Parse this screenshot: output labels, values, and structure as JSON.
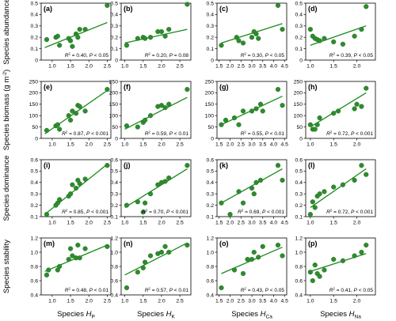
{
  "colors": {
    "point": "#2e8b2e",
    "point_stroke": "#1f6b1f",
    "line": "#1a8a1a",
    "axis": "#000000"
  },
  "chart_data": [
    {
      "type": "scatter",
      "panel": "(a)",
      "xlim": [
        0.7,
        2.6
      ],
      "ylim": [
        0,
        0.5
      ],
      "xticks": [
        1.0,
        1.5,
        2.0,
        2.5
      ],
      "yticks": [
        0,
        0.1,
        0.2,
        0.3,
        0.4,
        0.5
      ],
      "x": [
        0.85,
        1.1,
        1.15,
        1.2,
        1.45,
        1.5,
        1.55,
        1.65,
        1.7,
        1.75,
        1.9,
        2.5
      ],
      "y": [
        0.18,
        0.2,
        0.21,
        0.13,
        0.19,
        0.17,
        0.12,
        0.23,
        0.2,
        0.27,
        0.27,
        0.48
      ],
      "fit": [
        [
          0.8,
          0.11
        ],
        [
          2.5,
          0.33
        ]
      ],
      "stats": {
        "r2": "0.40",
        "p": "P < 0.05"
      }
    },
    {
      "type": "scatter",
      "panel": "(b)",
      "xlim": [
        0.9,
        2.8
      ],
      "ylim": [
        0,
        0.5
      ],
      "xticks": [
        1.0,
        1.5,
        2.0,
        2.5
      ],
      "yticks": [
        0,
        0.1,
        0.2,
        0.3,
        0.4,
        0.5
      ],
      "x": [
        1.05,
        1.35,
        1.5,
        1.55,
        1.7,
        1.9,
        2.0,
        2.1,
        2.2,
        2.7
      ],
      "y": [
        0.13,
        0.19,
        0.2,
        0.19,
        0.2,
        0.25,
        0.25,
        0.21,
        0.27,
        0.49
      ],
      "fit": [
        [
          1.0,
          0.15
        ],
        [
          2.7,
          0.27
        ]
      ],
      "stats": {
        "r2": "0.20",
        "p": "P = 0.08"
      }
    },
    {
      "type": "scatter",
      "panel": "(c)",
      "xlim": [
        1.4,
        4.6
      ],
      "ylim": [
        0,
        0.5
      ],
      "xticks": [
        1.5,
        2.0,
        2.5,
        3.0,
        3.5,
        4.0,
        4.5
      ],
      "yticks": [
        0,
        0.1,
        0.2,
        0.3,
        0.4,
        0.5
      ],
      "x": [
        1.6,
        2.3,
        2.4,
        2.6,
        3.0,
        3.1,
        3.2,
        3.3,
        4.2,
        4.4
      ],
      "y": [
        0.13,
        0.2,
        0.17,
        0.15,
        0.2,
        0.25,
        0.23,
        0.19,
        0.48,
        0.27
      ],
      "fit": [
        [
          1.6,
          0.15
        ],
        [
          4.4,
          0.32
        ]
      ],
      "stats": {
        "r2": "0.30",
        "p": "P < 0.05"
      }
    },
    {
      "type": "scatter",
      "panel": "(d)",
      "xlim": [
        0.9,
        2.4
      ],
      "ylim": [
        0,
        0.5
      ],
      "xticks": [
        1.0,
        1.5,
        2.0
      ],
      "yticks": [
        0,
        0.1,
        0.2,
        0.3,
        0.4,
        0.5
      ],
      "x": [
        1.0,
        1.05,
        1.1,
        1.15,
        1.2,
        1.3,
        1.5,
        1.7,
        1.95,
        2.1,
        2.2
      ],
      "y": [
        0.27,
        0.21,
        0.19,
        0.18,
        0.17,
        0.19,
        0.16,
        0.14,
        0.21,
        0.27,
        0.47
      ],
      "fit": [
        [
          1.0,
          0.13
        ],
        [
          2.2,
          0.3
        ]
      ],
      "stats": {
        "r2": "0.39",
        "p": "P < 0.05"
      }
    },
    {
      "type": "scatter",
      "panel": "(e)",
      "xlim": [
        0.7,
        2.6
      ],
      "ylim": [
        0,
        250
      ],
      "xticks": [
        1.0,
        1.5,
        2.0,
        2.5
      ],
      "yticks": [
        0,
        50,
        100,
        150,
        200,
        250
      ],
      "x": [
        0.85,
        1.1,
        1.15,
        1.2,
        1.45,
        1.5,
        1.55,
        1.65,
        1.7,
        1.75,
        1.9,
        2.5
      ],
      "y": [
        35,
        55,
        60,
        40,
        100,
        80,
        120,
        110,
        145,
        140,
        120,
        215
      ],
      "fit": [
        [
          0.8,
          20
        ],
        [
          2.5,
          210
        ]
      ],
      "stats": {
        "r2": "0.87",
        "p": "P < 0.001"
      }
    },
    {
      "type": "scatter",
      "panel": "(f)",
      "xlim": [
        0.9,
        2.8
      ],
      "ylim": [
        0,
        250
      ],
      "xticks": [
        1.0,
        1.5,
        2.0,
        2.5
      ],
      "yticks": [
        0,
        50,
        100,
        150,
        200,
        250
      ],
      "x": [
        1.05,
        1.35,
        1.5,
        1.55,
        1.7,
        1.9,
        2.0,
        2.1,
        2.2,
        2.7
      ],
      "y": [
        55,
        50,
        70,
        80,
        100,
        140,
        145,
        135,
        150,
        215
      ],
      "fit": [
        [
          1.0,
          40
        ],
        [
          2.7,
          180
        ]
      ],
      "stats": {
        "r2": "0.59",
        "p": "P < 0.01"
      }
    },
    {
      "type": "scatter",
      "panel": "(g)",
      "xlim": [
        1.4,
        4.6
      ],
      "ylim": [
        0,
        250
      ],
      "xticks": [
        1.5,
        2.0,
        2.5,
        3.0,
        3.5,
        4.0,
        4.5
      ],
      "yticks": [
        0,
        50,
        100,
        150,
        200,
        250
      ],
      "x": [
        1.6,
        1.8,
        2.2,
        2.4,
        2.6,
        3.0,
        3.2,
        3.4,
        3.5,
        4.2,
        4.4
      ],
      "y": [
        60,
        80,
        90,
        60,
        120,
        120,
        130,
        150,
        120,
        215,
        145
      ],
      "fit": [
        [
          1.6,
          60
        ],
        [
          4.4,
          185
        ]
      ],
      "stats": {
        "r2": "0.55",
        "p": "P < 0.01"
      }
    },
    {
      "type": "scatter",
      "panel": "(h)",
      "xlim": [
        0.9,
        2.4
      ],
      "ylim": [
        0,
        250
      ],
      "xticks": [
        1.0,
        1.5,
        2.0
      ],
      "yticks": [
        0,
        50,
        100,
        150,
        200,
        250
      ],
      "x": [
        1.0,
        1.05,
        1.1,
        1.15,
        1.2,
        1.5,
        1.6,
        1.95,
        2.0,
        2.1,
        2.2
      ],
      "y": [
        60,
        40,
        40,
        60,
        90,
        110,
        120,
        130,
        150,
        140,
        220
      ],
      "fit": [
        [
          1.0,
          50
        ],
        [
          2.2,
          200
        ]
      ],
      "stats": {
        "r2": "0.72",
        "p": "P < 0.001"
      }
    },
    {
      "type": "scatter",
      "panel": "(i)",
      "xlim": [
        0.7,
        2.6
      ],
      "ylim": [
        0.1,
        0.6
      ],
      "xticks": [
        1.0,
        1.5,
        2.0,
        2.5
      ],
      "yticks": [
        0.1,
        0.2,
        0.3,
        0.4,
        0.5,
        0.6
      ],
      "x": [
        0.85,
        1.1,
        1.15,
        1.2,
        1.45,
        1.5,
        1.55,
        1.65,
        1.7,
        1.75,
        1.9,
        2.5
      ],
      "y": [
        0.12,
        0.2,
        0.22,
        0.25,
        0.28,
        0.3,
        0.38,
        0.35,
        0.42,
        0.39,
        0.43,
        0.55
      ],
      "fit": [
        [
          0.8,
          0.12
        ],
        [
          2.5,
          0.56
        ]
      ],
      "stats": {
        "r2": "0.85",
        "p": "P < 0.001"
      }
    },
    {
      "type": "scatter",
      "panel": "(j)",
      "xlim": [
        0.9,
        2.8
      ],
      "ylim": [
        0.1,
        0.6
      ],
      "xticks": [
        1.0,
        1.5,
        2.0,
        2.5
      ],
      "yticks": [
        0.1,
        0.2,
        0.3,
        0.4,
        0.5,
        0.6
      ],
      "x": [
        1.05,
        1.35,
        1.5,
        1.55,
        1.7,
        1.9,
        2.0,
        2.1,
        2.2,
        2.7
      ],
      "y": [
        0.2,
        0.23,
        0.14,
        0.22,
        0.3,
        0.38,
        0.4,
        0.41,
        0.44,
        0.55
      ],
      "fit": [
        [
          1.0,
          0.18
        ],
        [
          2.7,
          0.52
        ]
      ],
      "stats": {
        "r2": "0.70",
        "p": "P < 0.001"
      }
    },
    {
      "type": "scatter",
      "panel": "(k)",
      "xlim": [
        1.4,
        4.6
      ],
      "ylim": [
        0.1,
        0.6
      ],
      "xticks": [
        1.5,
        2.0,
        2.5,
        3.0,
        3.5,
        4.0,
        4.5
      ],
      "yticks": [
        0.1,
        0.2,
        0.3,
        0.4,
        0.5,
        0.6
      ],
      "x": [
        1.6,
        2.0,
        2.4,
        2.6,
        3.0,
        3.1,
        3.2,
        3.4,
        4.2,
        4.4
      ],
      "y": [
        0.22,
        0.12,
        0.32,
        0.22,
        0.35,
        0.3,
        0.4,
        0.42,
        0.55,
        0.42
      ],
      "fit": [
        [
          1.6,
          0.22
        ],
        [
          4.4,
          0.52
        ]
      ],
      "stats": {
        "r2": "0.69",
        "p": "P < 0.001"
      }
    },
    {
      "type": "scatter",
      "panel": "(l)",
      "xlim": [
        0.9,
        2.4
      ],
      "ylim": [
        0.1,
        0.6
      ],
      "xticks": [
        1.0,
        1.5,
        2.0
      ],
      "yticks": [
        0.1,
        0.2,
        0.3,
        0.4,
        0.5,
        0.6
      ],
      "x": [
        1.0,
        1.05,
        1.1,
        1.15,
        1.2,
        1.3,
        1.5,
        1.7,
        1.95,
        2.1,
        2.2
      ],
      "y": [
        0.12,
        0.23,
        0.18,
        0.28,
        0.3,
        0.32,
        0.36,
        0.38,
        0.42,
        0.55,
        0.47
      ],
      "fit": [
        [
          1.0,
          0.18
        ],
        [
          2.2,
          0.52
        ]
      ],
      "stats": {
        "r2": "0.72",
        "p": "P < 0.001"
      }
    },
    {
      "type": "scatter",
      "panel": "(m)",
      "xlim": [
        0.7,
        2.6
      ],
      "ylim": [
        0.4,
        1.2
      ],
      "xticks": [
        1.0,
        1.5,
        2.0,
        2.5
      ],
      "yticks": [
        0.4,
        0.6,
        0.8,
        1.0,
        1.2
      ],
      "x": [
        0.85,
        0.9,
        1.15,
        1.2,
        1.45,
        1.5,
        1.55,
        1.65,
        1.7,
        1.75,
        1.9,
        2.5
      ],
      "y": [
        0.68,
        0.75,
        0.75,
        0.8,
        0.9,
        1.05,
        0.95,
        0.92,
        1.1,
        0.92,
        1.05,
        1.08
      ],
      "fit": [
        [
          0.8,
          0.73
        ],
        [
          2.5,
          1.1
        ]
      ],
      "stats": {
        "r2": "0.48",
        "p": "P < 0.01"
      }
    },
    {
      "type": "scatter",
      "panel": "(n)",
      "xlim": [
        0.9,
        2.8
      ],
      "ylim": [
        0.4,
        1.2
      ],
      "xticks": [
        1.0,
        1.5,
        2.0,
        2.5
      ],
      "yticks": [
        0.4,
        0.6,
        0.8,
        1.0,
        1.2
      ],
      "x": [
        1.05,
        1.35,
        1.5,
        1.55,
        1.7,
        1.9,
        2.0,
        2.1,
        2.2,
        2.7
      ],
      "y": [
        0.5,
        0.72,
        0.78,
        0.86,
        0.95,
        0.98,
        1.0,
        1.08,
        1.0,
        1.1
      ],
      "fit": [
        [
          1.0,
          0.68
        ],
        [
          2.7,
          1.13
        ]
      ],
      "stats": {
        "r2": "0.57",
        "p": "P < 0.01"
      }
    },
    {
      "type": "scatter",
      "panel": "(o)",
      "xlim": [
        1.4,
        4.6
      ],
      "ylim": [
        0.4,
        1.2
      ],
      "xticks": [
        1.5,
        2.0,
        2.5,
        3.0,
        3.5,
        4.0,
        4.5
      ],
      "yticks": [
        0.4,
        0.6,
        0.8,
        1.0,
        1.2
      ],
      "x": [
        1.6,
        2.2,
        2.6,
        2.8,
        3.0,
        3.1,
        3.3,
        3.5,
        4.2,
        4.4
      ],
      "y": [
        0.5,
        0.75,
        0.7,
        0.9,
        0.9,
        1.0,
        0.93,
        1.08,
        1.1,
        0.95
      ],
      "fit": [
        [
          1.6,
          0.7
        ],
        [
          4.4,
          1.07
        ]
      ],
      "stats": {
        "r2": "0.43",
        "p": "P < 0.05"
      }
    },
    {
      "type": "scatter",
      "panel": "(p)",
      "xlim": [
        0.9,
        2.4
      ],
      "ylim": [
        0.4,
        1.2
      ],
      "xticks": [
        1.0,
        1.5,
        2.0
      ],
      "yticks": [
        0.4,
        0.6,
        0.8,
        1.0,
        1.2
      ],
      "x": [
        1.0,
        1.05,
        1.1,
        1.15,
        1.2,
        1.3,
        1.5,
        1.7,
        1.95,
        2.1,
        2.2
      ],
      "y": [
        0.72,
        0.6,
        0.82,
        0.7,
        0.66,
        0.75,
        0.9,
        0.88,
        0.95,
        1.0,
        1.1
      ],
      "fit": [
        [
          1.0,
          0.73
        ],
        [
          2.2,
          0.98
        ]
      ],
      "stats": {
        "r2": "0.41",
        "p": "P < 0.05"
      }
    }
  ],
  "row_labels": [
    "Species abundance",
    "Species biomass (g m",
    "Species dominance",
    "Species stability"
  ],
  "biomass_sup": "-2",
  "biomass_close": ")",
  "col_labels": {
    "prefix": "Species ",
    "symbol": "H",
    "subscripts": [
      "P",
      "K",
      "Ca",
      "Na"
    ]
  },
  "stat_text": {
    "r2_symbol": "R",
    "r2_power": "2",
    "eq": " = ",
    "sep": ", "
  }
}
